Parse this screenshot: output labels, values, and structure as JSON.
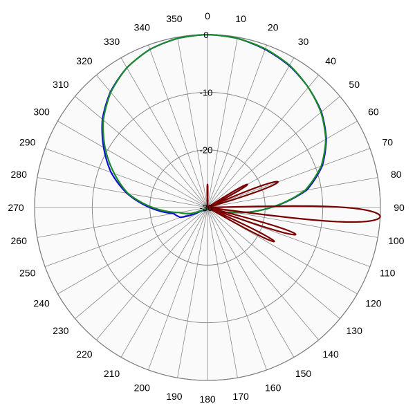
{
  "chart_data": {
    "type": "polar-line",
    "title": "",
    "angle_labels": [
      "0",
      "10",
      "20",
      "30",
      "40",
      "50",
      "60",
      "70",
      "80",
      "90",
      "100",
      "110",
      "120",
      "130",
      "140",
      "150",
      "160",
      "170",
      "180",
      "190",
      "200",
      "210",
      "220",
      "230",
      "240",
      "250",
      "260",
      "270",
      "280",
      "290",
      "300",
      "310",
      "320",
      "330",
      "340",
      "350"
    ],
    "radial_labels": [
      "0",
      "-10",
      "-20",
      "-30"
    ],
    "r_range_db": [
      -30,
      0
    ],
    "grid": true,
    "colors": {
      "blue_series": "#1010d0",
      "green_series": "#1a8a2a",
      "red_series": "#7a0000",
      "grid": "#888888",
      "frame": "#808080",
      "plot_bg": "#fafafa"
    },
    "series": [
      {
        "color": "blue_series",
        "points": [
          [
            0,
            0
          ],
          [
            10,
            -0.2
          ],
          [
            20,
            -0.8
          ],
          [
            30,
            -1.6
          ],
          [
            40,
            -2.8
          ],
          [
            50,
            -4.2
          ],
          [
            60,
            -6.2
          ],
          [
            70,
            -8.8
          ],
          [
            80,
            -12.5
          ],
          [
            90,
            -19
          ],
          [
            100,
            -25
          ],
          [
            110,
            -28.5
          ],
          [
            120,
            -29.5
          ],
          [
            180,
            -30
          ],
          [
            240,
            -29
          ],
          [
            250,
            -25
          ],
          [
            260,
            -24
          ],
          [
            270,
            -20
          ],
          [
            280,
            -15.8
          ],
          [
            290,
            -12.2
          ],
          [
            300,
            -9.2
          ],
          [
            310,
            -6.2
          ],
          [
            320,
            -3.8
          ],
          [
            330,
            -2
          ],
          [
            340,
            -0.8
          ],
          [
            350,
            -0.2
          ],
          [
            360,
            0
          ]
        ]
      },
      {
        "color": "green_series",
        "points": [
          [
            0,
            0
          ],
          [
            10,
            -0.2
          ],
          [
            20,
            -0.7
          ],
          [
            30,
            -1.5
          ],
          [
            40,
            -2.8
          ],
          [
            50,
            -4.3
          ],
          [
            60,
            -6.3
          ],
          [
            70,
            -9
          ],
          [
            80,
            -12.8
          ],
          [
            90,
            -19
          ],
          [
            100,
            -25
          ],
          [
            110,
            -28.5
          ],
          [
            120,
            -29.5
          ],
          [
            180,
            -30
          ],
          [
            240,
            -29.5
          ],
          [
            250,
            -27
          ],
          [
            260,
            -25
          ],
          [
            270,
            -20.5
          ],
          [
            280,
            -16
          ],
          [
            290,
            -12.8
          ],
          [
            300,
            -9.5
          ],
          [
            310,
            -6.4
          ],
          [
            320,
            -3.9
          ],
          [
            330,
            -2
          ],
          [
            340,
            -0.8
          ],
          [
            350,
            -0.2
          ],
          [
            360,
            0
          ]
        ]
      },
      {
        "color": "red_series",
        "lobes": [
          {
            "center_deg": 0,
            "width_deg": 6,
            "peak_db": -26
          },
          {
            "center_deg": 60,
            "width_deg": 8,
            "peak_db": -22
          },
          {
            "center_deg": 70,
            "width_deg": 8,
            "peak_db": -17
          },
          {
            "center_deg": 93,
            "width_deg": 9,
            "peak_db": 0
          },
          {
            "center_deg": 107,
            "width_deg": 6,
            "peak_db": -14
          },
          {
            "center_deg": 117,
            "width_deg": 6,
            "peak_db": -17
          }
        ]
      }
    ]
  }
}
